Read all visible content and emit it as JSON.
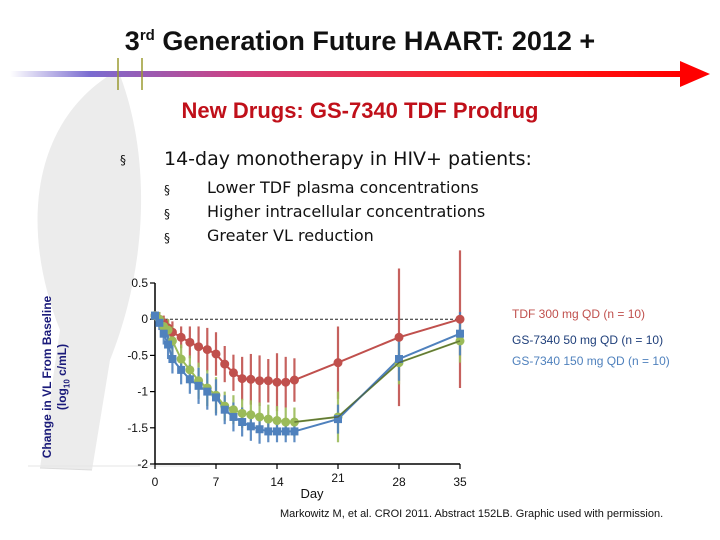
{
  "title": {
    "pre": "3",
    "sup": "rd",
    "post": " Generation Future HAART: 2012 +"
  },
  "subtitle": "New Drugs: GS-7340 TDF Prodrug",
  "bullet_main": "14-day monotherapy in HIV+ patients:",
  "bullet_sub": [
    "Lower TDF plasma concentrations",
    "Higher intracellular concentrations",
    "Greater VL reduction"
  ],
  "bullet_marker": "§",
  "colors": {
    "title_red": "#c0101a",
    "tdf": "#c0504d",
    "gs50": "#4f81bd",
    "gs150": "#9bbb59",
    "axis_label": "#1a1a7a"
  },
  "ylabel_line1": "Change in VL From Baseline",
  "ylabel_line2_pre": "(log",
  "ylabel_line2_sub": "10",
  "ylabel_line2_post": " c/mL)",
  "citation": "Markowitz M, et al. CROI 2011. Abstract 152LB. Graphic used with permission.",
  "chart_data": {
    "type": "line",
    "xlabel": "Day",
    "ylabel": "Change in VL From Baseline (log10 c/mL)",
    "xlim": [
      0,
      35
    ],
    "ylim": [
      -2,
      0.5
    ],
    "x_ticks": [
      "0",
      "7",
      "14",
      "21",
      "28",
      "35"
    ],
    "y_ticks": [
      "0.5",
      "0",
      "-0.5",
      "-1",
      "-1.5",
      "-2"
    ],
    "reference_line_y": 0,
    "series": [
      {
        "name": "TDF 300 mg QD (n = 10)",
        "color": "#c0504d",
        "x": [
          0,
          0.5,
          1,
          1.5,
          2,
          3,
          4,
          5,
          6,
          7,
          8,
          9,
          10,
          11,
          12,
          13,
          14,
          15,
          16,
          21,
          28,
          35
        ],
        "y": [
          0.05,
          0.0,
          -0.05,
          -0.12,
          -0.18,
          -0.25,
          -0.32,
          -0.38,
          -0.42,
          -0.48,
          -0.62,
          -0.74,
          -0.82,
          -0.83,
          -0.85,
          -0.85,
          -0.87,
          -0.87,
          -0.84,
          -0.6,
          -0.25,
          0.0
        ],
        "err": [
          0.05,
          0.1,
          0.1,
          0.12,
          0.15,
          0.15,
          0.22,
          0.28,
          0.3,
          0.3,
          0.25,
          0.25,
          0.3,
          0.35,
          0.35,
          0.3,
          0.4,
          0.35,
          0.3,
          0.5,
          0.95,
          0.95
        ]
      },
      {
        "name": "GS-7340 50 mg QD (n = 10)",
        "color": "#4f81bd",
        "x": [
          0,
          0.5,
          1,
          1.5,
          2,
          3,
          4,
          5,
          6,
          7,
          8,
          9,
          10,
          11,
          12,
          13,
          14,
          15,
          16,
          21,
          28,
          35
        ],
        "y": [
          0.05,
          -0.05,
          -0.2,
          -0.35,
          -0.55,
          -0.7,
          -0.83,
          -0.92,
          -1.0,
          -1.08,
          -1.25,
          -1.35,
          -1.42,
          -1.48,
          -1.52,
          -1.55,
          -1.55,
          -1.55,
          -1.55,
          -1.38,
          -0.55,
          -0.2
        ],
        "err": [
          0.05,
          0.1,
          0.15,
          0.2,
          0.2,
          0.2,
          0.2,
          0.25,
          0.25,
          0.25,
          0.2,
          0.2,
          0.2,
          0.2,
          0.2,
          0.15,
          0.15,
          0.15,
          0.15,
          0.2,
          0.3,
          0.3
        ]
      },
      {
        "name": "GS-7340 150 mg QD (n = 10)",
        "color": "#9bbb59",
        "x": [
          0,
          0.5,
          1,
          1.5,
          2,
          3,
          4,
          5,
          6,
          7,
          8,
          9,
          10,
          11,
          12,
          13,
          14,
          15,
          16,
          21,
          28,
          35
        ],
        "y": [
          0.05,
          0.0,
          -0.1,
          -0.15,
          -0.3,
          -0.55,
          -0.7,
          -0.85,
          -0.95,
          -1.05,
          -1.2,
          -1.25,
          -1.3,
          -1.32,
          -1.35,
          -1.38,
          -1.4,
          -1.42,
          -1.42,
          -1.35,
          -0.6,
          -0.3
        ],
        "err": [
          0.05,
          0.1,
          0.12,
          0.15,
          0.2,
          0.2,
          0.2,
          0.25,
          0.25,
          0.25,
          0.2,
          0.2,
          0.2,
          0.2,
          0.2,
          0.2,
          0.2,
          0.2,
          0.2,
          0.35,
          0.3,
          0.3
        ]
      }
    ]
  }
}
